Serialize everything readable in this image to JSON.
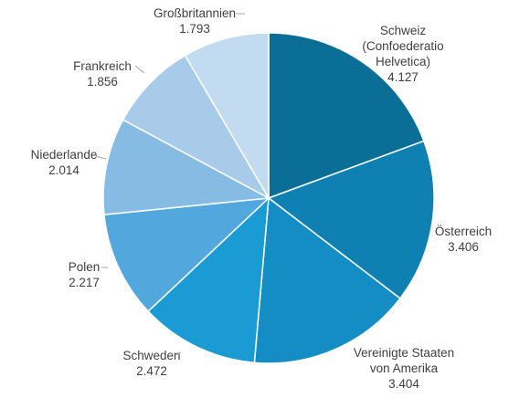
{
  "chart_data": {
    "type": "pie",
    "slices": [
      {
        "label_lines": [
          "Schweiz",
          "(Confoederatio",
          "Helvetica)"
        ],
        "value": 4.127,
        "value_label": "4.127",
        "color": "#0a6e96"
      },
      {
        "label_lines": [
          "Österreich"
        ],
        "value": 3.406,
        "value_label": "3.406",
        "color": "#0f80b2"
      },
      {
        "label_lines": [
          "Vereinigte Staaten",
          "von Amerika"
        ],
        "value": 3.404,
        "value_label": "3.404",
        "color": "#138dc4"
      },
      {
        "label_lines": [
          "Schweden"
        ],
        "value": 2.472,
        "value_label": "2.472",
        "color": "#1b9bd3"
      },
      {
        "label_lines": [
          "Polen"
        ],
        "value": 2.217,
        "value_label": "2.217",
        "color": "#52a8dc"
      },
      {
        "label_lines": [
          "Niederlande"
        ],
        "value": 2.014,
        "value_label": "2.014",
        "color": "#86bbe3"
      },
      {
        "label_lines": [
          "Frankreich"
        ],
        "value": 1.856,
        "value_label": "1.856",
        "color": "#a7cbe9"
      },
      {
        "label_lines": [
          "Großbritannien"
        ],
        "value": 1.793,
        "value_label": "1.793",
        "color": "#c3dbf0"
      }
    ],
    "start_angle": "12 o'clock",
    "direction": "clockwise",
    "legend": "none"
  }
}
